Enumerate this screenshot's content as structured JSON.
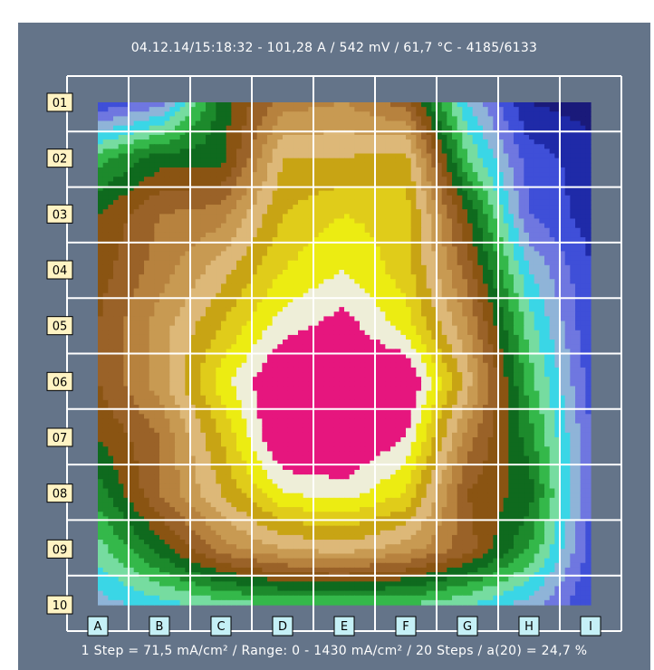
{
  "chart_data": {
    "type": "heatmap",
    "title": "04.12.14/15:18:32 - 101,28 A / 542 mV / 61,7 °C - 4185/6133",
    "subtitle": "1 Step = 71,5 mA/cm² / Range: 0 - 1430 mA/cm² / 20 Steps / a(20) = 24,7 %",
    "x_categories": [
      "A",
      "B",
      "C",
      "D",
      "E",
      "F",
      "G",
      "H",
      "I"
    ],
    "y_categories": [
      "01",
      "02",
      "03",
      "04",
      "05",
      "06",
      "07",
      "08",
      "09",
      "10"
    ],
    "units": "mA/cm²",
    "range": [
      0,
      1430
    ],
    "steps": 20,
    "step_size": 71.5,
    "grid": true,
    "values": [
      [
        2.0,
        3.5,
        9.5,
        12.5,
        13.0,
        11.5,
        5.0,
        1.0,
        0.5
      ],
      [
        7.5,
        9.5,
        9.5,
        15.0,
        15.0,
        15.5,
        7.0,
        2.5,
        1.5
      ],
      [
        10.0,
        12.0,
        12.5,
        16.0,
        17.0,
        16.5,
        10.0,
        3.0,
        1.5
      ],
      [
        10.5,
        12.5,
        14.5,
        17.0,
        18.0,
        16.5,
        11.5,
        5.0,
        2.0
      ],
      [
        11.0,
        13.5,
        16.0,
        18.5,
        19.5,
        17.5,
        13.0,
        6.5,
        2.0
      ],
      [
        11.0,
        13.5,
        17.5,
        20.5,
        20.5,
        20.5,
        14.5,
        7.5,
        2.5
      ],
      [
        10.0,
        12.0,
        16.0,
        20.5,
        20.5,
        19.0,
        12.5,
        8.5,
        3.0
      ],
      [
        8.5,
        12.0,
        15.0,
        18.0,
        18.5,
        17.0,
        11.0,
        9.5,
        3.0
      ],
      [
        6.5,
        9.5,
        12.5,
        14.0,
        14.5,
        13.5,
        11.5,
        8.0,
        2.5
      ],
      [
        4.5,
        5.5,
        6.5,
        7.0,
        7.0,
        7.0,
        6.0,
        4.5,
        2.0
      ]
    ],
    "color_levels": [
      "#1a1a7a",
      "#1f2aa8",
      "#3f4fd8",
      "#6f77e0",
      "#8fb4d8",
      "#3ad6e6",
      "#76dca0",
      "#34b84a",
      "#1d8a2c",
      "#0f6a1e",
      "#8a5412",
      "#9a6228",
      "#b7823e",
      "#c89a52",
      "#ddb878",
      "#c8a414",
      "#e0cc1a",
      "#ecec12",
      "#eeeed8",
      "#e6167e"
    ]
  },
  "colors": {
    "panel": "#647489",
    "grid": "#ffffff",
    "label_box": "#fff3c3",
    "col_label_box": "#c5f0f6"
  }
}
